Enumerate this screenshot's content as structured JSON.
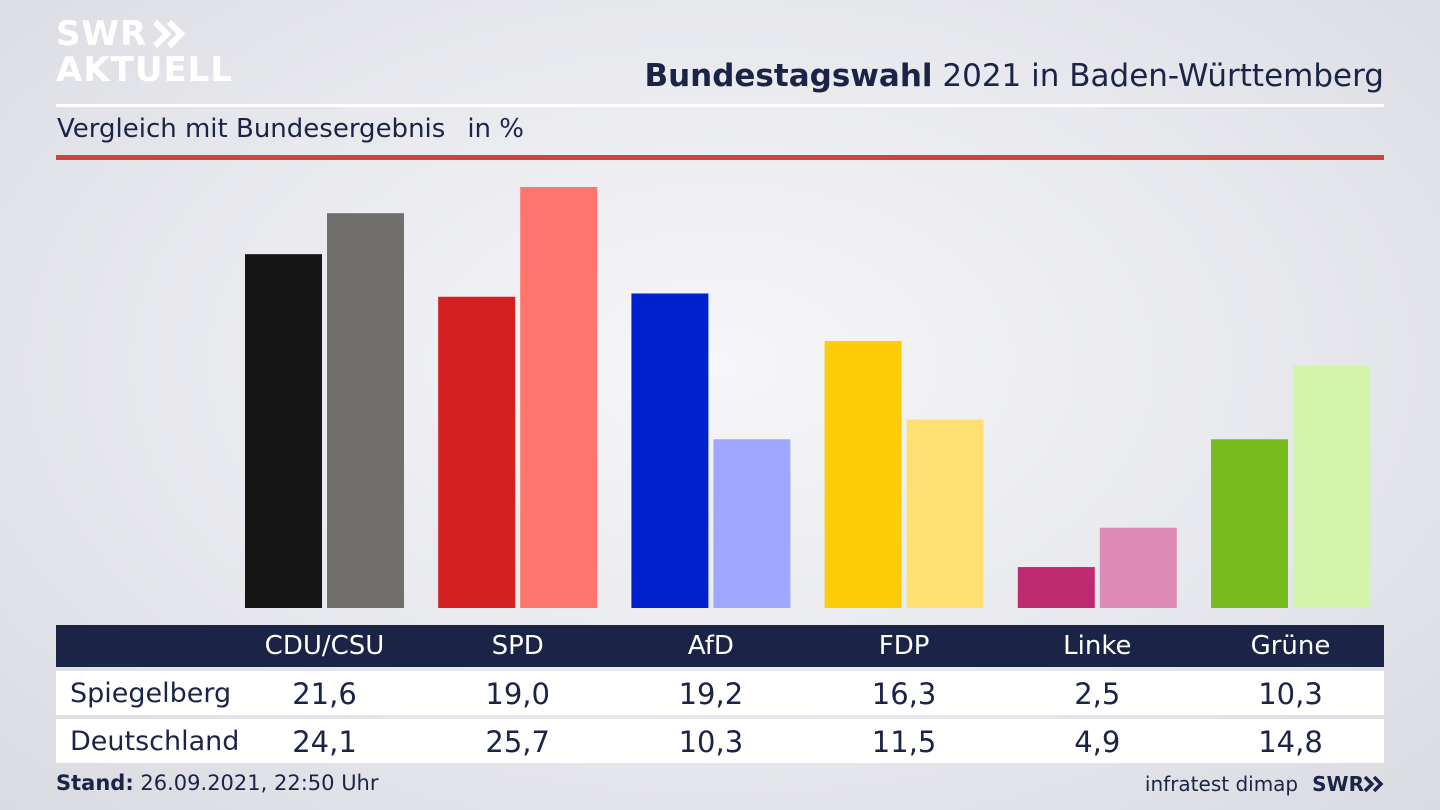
{
  "logo": {
    "line1": "SWR",
    "line2": "AKTUELL"
  },
  "header": {
    "title_bold": "Bundestagswahl",
    "title_rest": "2021 in Baden-Württemberg",
    "subtitle": "Vergleich mit Bundesergebnis",
    "unit": "in %"
  },
  "colors": {
    "navy": "#1b2447",
    "accent_red": "#d2443a"
  },
  "chart_data": {
    "type": "bar",
    "categories": [
      "CDU/CSU",
      "SPD",
      "AfD",
      "FDP",
      "Linke",
      "Grüne"
    ],
    "series": [
      {
        "name": "Spiegelberg",
        "values": [
          21.6,
          19.0,
          19.2,
          16.3,
          2.5,
          10.3
        ]
      },
      {
        "name": "Deutschland",
        "values": [
          24.1,
          25.7,
          10.3,
          11.5,
          4.9,
          14.8
        ]
      }
    ],
    "colors": {
      "Spiegelberg": [
        "#151515",
        "#d42020",
        "#0022cc",
        "#ffcc0a",
        "#be2a70",
        "#77bb1f"
      ],
      "Deutschland": [
        "#706f6d",
        "#ff756d",
        "#9ea8ff",
        "#fee072",
        "#de8bb8",
        "#d3f5aa"
      ]
    }
  },
  "table": {
    "rows": [
      {
        "label": "Spiegelberg",
        "values": [
          "21,6",
          "19,0",
          "19,2",
          "16,3",
          "2,5",
          "10,3"
        ]
      },
      {
        "label": "Deutschland",
        "values": [
          "24,1",
          "25,7",
          "10,3",
          "11,5",
          "4,9",
          "14,8"
        ]
      }
    ]
  },
  "footer": {
    "stand_label": "Stand:",
    "stand_value": "26.09.2021, 22:50 Uhr",
    "source": "infratest dimap",
    "brand": "SWR"
  }
}
